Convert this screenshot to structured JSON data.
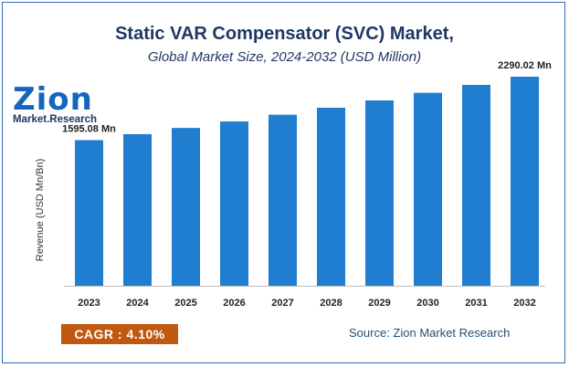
{
  "header": {
    "title": "Static VAR Compensator (SVC) Market,",
    "subtitle": "Global Market Size, 2024-2032 (USD Million)"
  },
  "logo": {
    "main_text": "Zion",
    "sub_text": "Market.Research"
  },
  "footer": {
    "cagr_label": "CAGR :",
    "cagr_value": "4.10%",
    "source": "Source: Zion Market Research"
  },
  "colors": {
    "bar": "#1f7ed0",
    "title": "#1f3864",
    "border": "#2f6db5",
    "cagr_bg": "#c0580f"
  },
  "chart_data": {
    "type": "bar",
    "title": "Static VAR Compensator (SVC) Market,",
    "subtitle": "Global Market Size, 2024-2032 (USD Million)",
    "xlabel": "",
    "ylabel": "Revenue (USD Mn/Bn)",
    "categories": [
      "2023",
      "2024",
      "2025",
      "2026",
      "2027",
      "2028",
      "2029",
      "2030",
      "2031",
      "2032"
    ],
    "values": [
      1595.08,
      1660.5,
      1728.6,
      1799.5,
      1873.3,
      1950.1,
      2030.1,
      2113.3,
      2200.0,
      2290.02
    ],
    "data_labels": {
      "0": "1595.08 Mn",
      "9": "2290.02 Mn"
    },
    "ylim": [
      0,
      2500
    ],
    "grid": false,
    "legend": "none"
  }
}
